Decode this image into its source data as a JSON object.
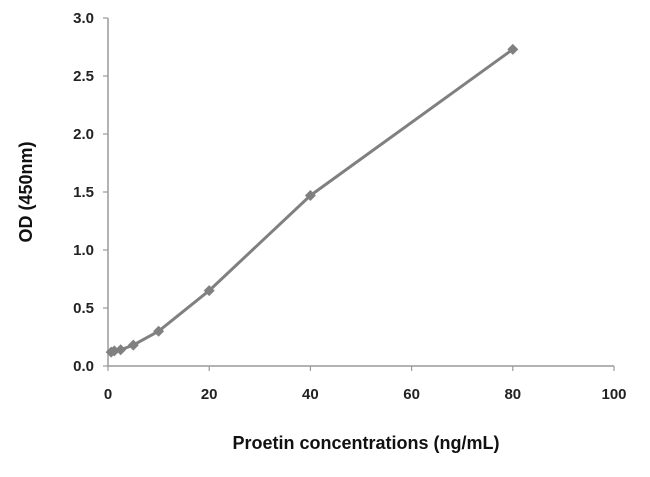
{
  "chart_data": {
    "type": "line",
    "title": "",
    "xlabel": "Proetin concentrations (ng/mL)",
    "ylabel": "OD (450nm)",
    "xlim": [
      0,
      100
    ],
    "ylim": [
      0,
      3.0
    ],
    "xticks": [
      0,
      20,
      40,
      60,
      80,
      100
    ],
    "xtick_labels": [
      "0",
      "20",
      "40",
      "60",
      "80",
      "100"
    ],
    "yticks": [
      0,
      0.5,
      1.0,
      1.5,
      2.0,
      2.5,
      3.0
    ],
    "ytick_labels": [
      "0.0",
      "0.5",
      "1.0",
      "1.5",
      "2.0",
      "2.5",
      "3.0"
    ],
    "grid": false,
    "legend": "none",
    "marker": "diamond",
    "series": [
      {
        "color": "#808080",
        "x": [
          0.625,
          1.25,
          2.5,
          5,
          10,
          20,
          40,
          80
        ],
        "y": [
          0.12,
          0.13,
          0.14,
          0.18,
          0.3,
          0.65,
          1.47,
          2.73
        ]
      }
    ]
  }
}
